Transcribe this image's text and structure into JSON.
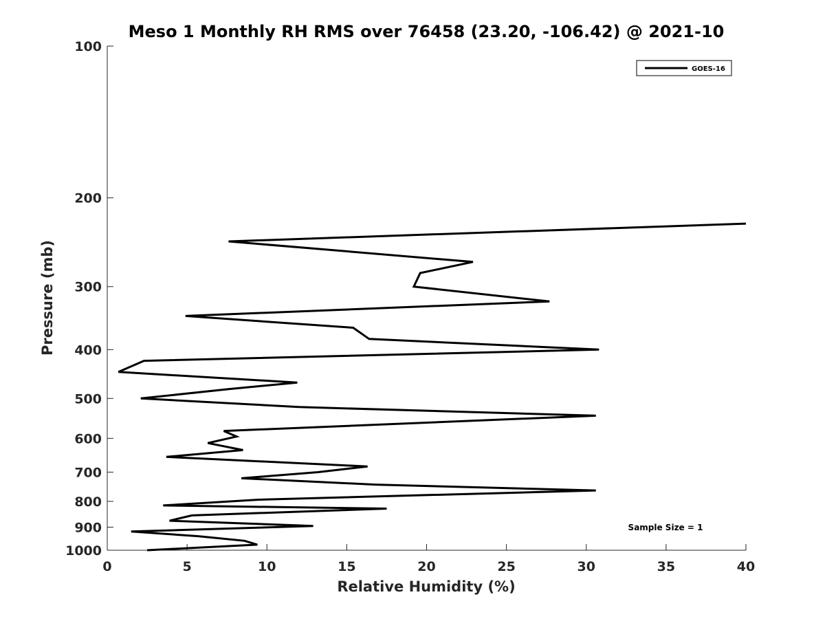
{
  "chart_data": {
    "type": "line",
    "title": "Meso 1 Monthly RH RMS over 76458 (23.20, -106.42) @ 2021-10",
    "xlabel": "Relative Humidity (%)",
    "ylabel": "Pressure (mb)",
    "xlim": [
      0,
      40
    ],
    "ylim": [
      100,
      1000
    ],
    "y_scale": "log",
    "y_reversed": true,
    "x_ticks": [
      0,
      5,
      10,
      15,
      20,
      25,
      30,
      35,
      40
    ],
    "y_ticks": [
      100,
      200,
      300,
      400,
      500,
      600,
      700,
      800,
      900,
      1000
    ],
    "grid": false,
    "legend_position": "top-right",
    "series": [
      {
        "name": "GOES-16",
        "color": "#000000",
        "points": [
          [
            40.0,
            225
          ],
          [
            7.6,
            244
          ],
          [
            22.9,
            268
          ],
          [
            19.6,
            282
          ],
          [
            19.2,
            300
          ],
          [
            27.7,
            321
          ],
          [
            4.9,
            343
          ],
          [
            15.4,
            362
          ],
          [
            16.4,
            381
          ],
          [
            30.8,
            400
          ],
          [
            2.3,
            421
          ],
          [
            0.7,
            443
          ],
          [
            11.9,
            465
          ],
          [
            7.6,
            479
          ],
          [
            2.1,
            500
          ],
          [
            12.0,
            520
          ],
          [
            30.6,
            541
          ],
          [
            7.3,
            580
          ],
          [
            8.1,
            595
          ],
          [
            6.3,
            613
          ],
          [
            8.5,
            633
          ],
          [
            3.7,
            653
          ],
          [
            16.3,
            682
          ],
          [
            13.2,
            700
          ],
          [
            8.4,
            720
          ],
          [
            16.8,
            741
          ],
          [
            30.6,
            761
          ],
          [
            9.4,
            794
          ],
          [
            3.5,
            815
          ],
          [
            17.5,
            827
          ],
          [
            5.3,
            853
          ],
          [
            3.9,
            874
          ],
          [
            12.9,
            895
          ],
          [
            1.5,
            918
          ],
          [
            5.7,
            938
          ],
          [
            8.6,
            958
          ],
          [
            9.4,
            975
          ],
          [
            2.5,
            1000
          ]
        ]
      }
    ],
    "annotation": "Sample Size = 1",
    "annotation_position": "bottom-right"
  }
}
